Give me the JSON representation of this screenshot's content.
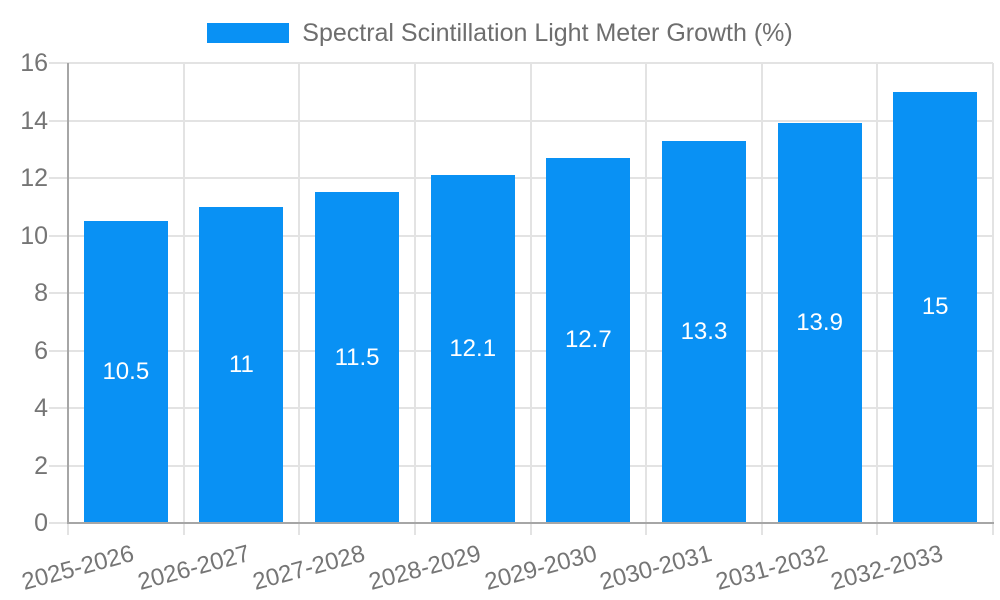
{
  "chart_data": {
    "type": "bar",
    "legend": "Spectral Scintillation Light Meter Growth (%)",
    "categories": [
      "2025-2026",
      "2026-2027",
      "2027-2028",
      "2028-2029",
      "2029-2030",
      "2030-2031",
      "2031-2032",
      "2032-2033"
    ],
    "values": [
      10.5,
      11,
      11.5,
      12.1,
      12.7,
      13.3,
      13.9,
      15
    ],
    "title": "",
    "xlabel": "",
    "ylabel": "",
    "ylim": [
      0,
      16
    ],
    "y_ticks": [
      0,
      2,
      4,
      6,
      8,
      10,
      12,
      14,
      16
    ],
    "grid": true,
    "legend_position": "top-center",
    "x_label_rotation_deg": -15,
    "colors": {
      "bar": "#0991f4",
      "grid": "#e3e3e3",
      "axis": "#a6a6a6",
      "tick_label": "#757575",
      "legend_text": "#6e6e6e",
      "bar_label": "#ffffff",
      "background": "#ffffff"
    }
  }
}
